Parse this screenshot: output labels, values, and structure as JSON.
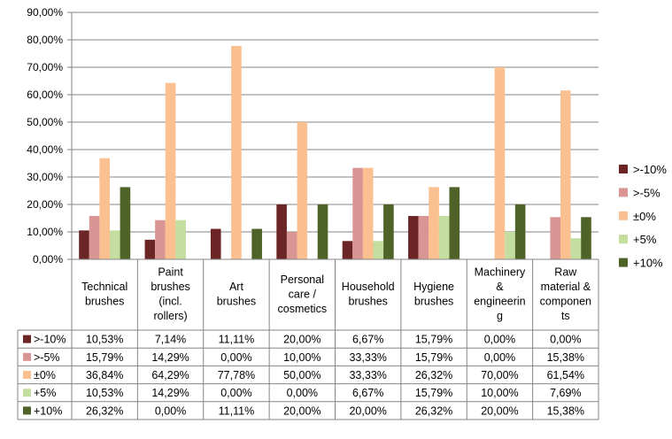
{
  "chart_data": {
    "type": "bar",
    "categories": [
      "Technical brushes",
      "Paint brushes (incl. rollers)",
      "Art brushes",
      "Personal care / cosmetics",
      "Household brushes",
      "Hygiene brushes",
      "Machinery & engineering",
      "Raw material & components"
    ],
    "category_lines": [
      [
        "Technical",
        "brushes"
      ],
      [
        "Paint",
        "brushes",
        "(incl.",
        "rollers)"
      ],
      [
        "Art",
        "brushes"
      ],
      [
        "Personal",
        "care /",
        "cosmetics"
      ],
      [
        "Household",
        "brushes"
      ],
      [
        "Hygiene",
        "brushes"
      ],
      [
        "Machinery",
        "&",
        "engineerin",
        "g"
      ],
      [
        "Raw",
        "material &",
        "componen",
        "ts"
      ]
    ],
    "series": [
      {
        "name": ">-10%",
        "color": "#6b2525",
        "values": [
          10.53,
          7.14,
          11.11,
          20.0,
          6.67,
          15.79,
          0.0,
          0.0
        ],
        "labels": [
          "10,53%",
          "7,14%",
          "11,11%",
          "20,00%",
          "6,67%",
          "15,79%",
          "0,00%",
          "0,00%"
        ]
      },
      {
        "name": ">-5%",
        "color": "#d99494",
        "values": [
          15.79,
          14.29,
          0.0,
          10.0,
          33.33,
          15.79,
          0.0,
          15.38
        ],
        "labels": [
          "15,79%",
          "14,29%",
          "0,00%",
          "10,00%",
          "33,33%",
          "15,79%",
          "0,00%",
          "15,38%"
        ]
      },
      {
        "name": "±0%",
        "color": "#fac090",
        "values": [
          36.84,
          64.29,
          77.78,
          50.0,
          33.33,
          26.32,
          70.0,
          61.54
        ],
        "labels": [
          "36,84%",
          "64,29%",
          "77,78%",
          "50,00%",
          "33,33%",
          "26,32%",
          "70,00%",
          "61,54%"
        ]
      },
      {
        "name": "+5%",
        "color": "#c4dea0",
        "values": [
          10.53,
          14.29,
          0.0,
          0.0,
          6.67,
          15.79,
          10.0,
          7.69
        ],
        "labels": [
          "10,53%",
          "14,29%",
          "0,00%",
          "0,00%",
          "6,67%",
          "15,79%",
          "10,00%",
          "7,69%"
        ]
      },
      {
        "name": "+10%",
        "color": "#4f6228",
        "values": [
          26.32,
          0.0,
          11.11,
          20.0,
          20.0,
          26.32,
          20.0,
          15.38
        ],
        "labels": [
          "26,32%",
          "0,00%",
          "11,11%",
          "20,00%",
          "20,00%",
          "26,32%",
          "20,00%",
          "15,38%"
        ]
      }
    ],
    "yticks": [
      "0,00%",
      "10,00%",
      "20,00%",
      "30,00%",
      "40,00%",
      "50,00%",
      "60,00%",
      "70,00%",
      "80,00%",
      "90,00%"
    ],
    "ylim": [
      0,
      90
    ],
    "grid": true,
    "legend": "right",
    "data_table": true
  }
}
